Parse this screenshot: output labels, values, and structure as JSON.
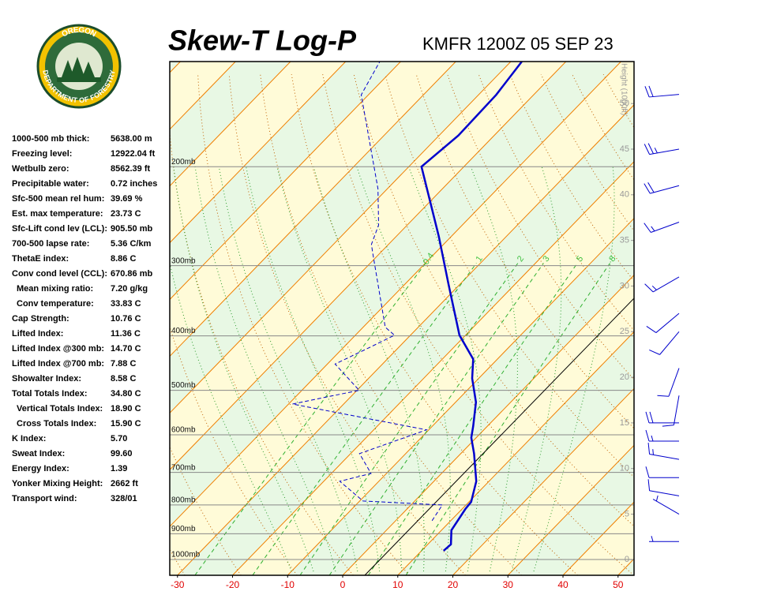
{
  "logo": {
    "top": "OREGON",
    "bottom": "DEPARTMENT OF FORESTRY"
  },
  "stats": {
    "rows": [
      [
        "1000-500 mb thick:",
        "5638.00 m"
      ],
      [
        "Freezing level:",
        "12922.04 ft"
      ],
      [
        "Wetbulb zero:",
        "8562.39 ft"
      ],
      [
        "Precipitable water:",
        "0.72 inches"
      ],
      [
        "Sfc-500 mean rel hum:",
        "39.69 %"
      ],
      [
        "Est. max temperature:",
        "23.73 C"
      ],
      [
        "Sfc-Lift cond lev (LCL):",
        "905.50 mb"
      ],
      [
        "700-500 lapse rate:",
        "5.36 C/km"
      ],
      [
        "ThetaE index:",
        "8.86 C"
      ],
      [
        "Conv cond level (CCL):",
        "670.86 mb"
      ],
      [
        "Mean mixing ratio:",
        "7.20 g/kg"
      ],
      [
        "Conv temperature:",
        "33.83 C"
      ],
      [
        "Cap Strength:",
        "10.76 C"
      ],
      [
        "Lifted Index:",
        "11.36 C"
      ],
      [
        "Lifted Index @300 mb:",
        "14.70 C"
      ],
      [
        "Lifted Index @700 mb:",
        "7.88 C"
      ],
      [
        "Showalter Index:",
        "8.58 C"
      ],
      [
        "Total Totals Index:",
        "34.80 C"
      ],
      [
        "Vertical Totals Index:",
        "18.90 C"
      ],
      [
        "Cross Totals Index:",
        "15.90 C"
      ],
      [
        "K Index:",
        "5.70"
      ],
      [
        "Sweat Index:",
        "99.60"
      ],
      [
        "Energy Index:",
        "1.39"
      ],
      [
        "Yonker Mixing Height:",
        "2662 ft"
      ],
      [
        "Transport wind:",
        "328/01"
      ]
    ]
  },
  "chart_data": {
    "type": "skewt",
    "title": "Skew-T Log-P",
    "subtitle": "KMFR 1200Z 05 SEP 23",
    "xlim": [
      -31.4,
      52.9
    ],
    "xticks": [
      -30,
      -20,
      -10,
      0,
      10,
      20,
      30,
      40,
      50
    ],
    "ylim": [
      1067,
      130
    ],
    "log_y": true,
    "yticks": [
      {
        "value": 200,
        "label": "200mb"
      },
      {
        "value": 300,
        "label": "300mb"
      },
      {
        "value": 400,
        "label": "400mb"
      },
      {
        "value": 500,
        "label": "500mb"
      },
      {
        "value": 600,
        "label": "600mb"
      },
      {
        "value": 700,
        "label": "700mb"
      },
      {
        "value": 800,
        "label": "800mb"
      },
      {
        "value": 900,
        "label": "900mb"
      },
      {
        "value": 1000,
        "label": "1000mb"
      }
    ],
    "y2label": "Height (1000ft)",
    "y2lim": [
      -1.7,
      54.6
    ],
    "y2ticks": [
      0,
      5,
      10,
      15,
      20,
      25,
      30,
      35,
      40,
      45,
      50
    ],
    "mixing_ratios": [
      0.4,
      1,
      2,
      3,
      5,
      8
    ],
    "series": [
      {
        "color": "#0000cc",
        "dash": false,
        "pressure": [
          965,
          940,
          887,
          813,
          790,
          726,
          648,
          607,
          579,
          525,
          476,
          440,
          399,
          323,
          266,
          200,
          176,
          149,
          130
        ],
        "values": [
          14.0,
          14.2,
          11.8,
          10.6,
          10.4,
          7.7,
          2.4,
          -0.9,
          -2.6,
          -6.3,
          -11.2,
          -14.4,
          -21.1,
          -32.2,
          -42.3,
          -57.7,
          -56.5,
          -56.8,
          -58.0
        ]
      },
      {
        "color": "#0000cc",
        "dash": true,
        "pressure": [
          853,
          800,
          787,
          726,
          703,
          648,
          588,
          529,
          500,
          449,
          419,
          399,
          386,
          284,
          275,
          254,
          219,
          149,
          130
        ],
        "values": [
          6.6,
          5.7,
          -9.4,
          -17.1,
          -12.8,
          -18.4,
          -10.4,
          -39.3,
          -29.6,
          -38.6,
          -35.2,
          -32.9,
          -36.0,
          -51.5,
          -53.1,
          -55.2,
          -61.7,
          -81.3,
          -83.8
        ]
      }
    ],
    "wind": {
      "heights": [
        51,
        45,
        41,
        37,
        31,
        27,
        25,
        21,
        18,
        15,
        13,
        11,
        9,
        7,
        5,
        2
      ],
      "directions": [
        265,
        260,
        255,
        250,
        240,
        230,
        220,
        200,
        190,
        270,
        270,
        280,
        270,
        280,
        300,
        270
      ],
      "speeds": [
        20,
        25,
        20,
        15,
        15,
        10,
        10,
        10,
        10,
        20,
        15,
        15,
        10,
        10,
        5,
        5
      ]
    }
  }
}
